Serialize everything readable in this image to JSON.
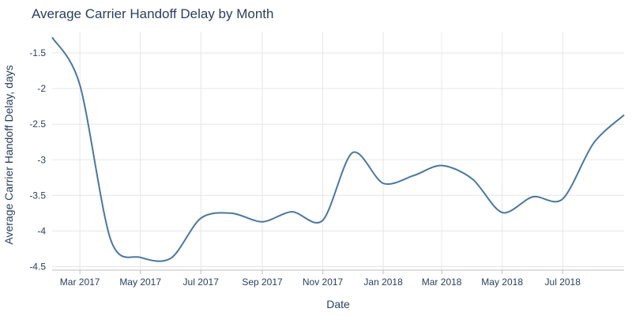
{
  "chart_data": {
    "type": "line",
    "title": "Average Carrier Handoff Delay by Month",
    "xlabel": "Date",
    "ylabel": "Average Carrier Handoff Delay, days",
    "x_tick_labels": [
      "Mar 2017",
      "May 2017",
      "Jul 2017",
      "Sep 2017",
      "Nov 2017",
      "Jan 2018",
      "Mar 2018",
      "May 2018",
      "Jul 2018"
    ],
    "x_tick_dates": [
      "2017-03-01",
      "2017-05-01",
      "2017-07-01",
      "2017-09-01",
      "2017-11-01",
      "2018-01-01",
      "2018-03-01",
      "2018-05-01",
      "2018-07-01"
    ],
    "y_tick_labels": [
      "-1.5",
      "-2",
      "-2.5",
      "-3",
      "-3.5",
      "-4",
      "-4.5"
    ],
    "y_tick_values": [
      -1.5,
      -2,
      -2.5,
      -3,
      -3.5,
      -4,
      -4.5
    ],
    "xlim": [
      "2017-02-01",
      "2018-09-01"
    ],
    "ylim": [
      -4.55,
      -1.2
    ],
    "grid": true,
    "line_color": "#4a77a0",
    "series": [
      {
        "x": [
          "2017-02-01",
          "2017-03-01",
          "2017-04-01",
          "2017-05-01",
          "2017-06-01",
          "2017-07-01",
          "2017-08-01",
          "2017-09-01",
          "2017-10-01",
          "2017-11-01",
          "2017-12-01",
          "2018-01-01",
          "2018-02-01",
          "2018-03-01",
          "2018-04-01",
          "2018-05-01",
          "2018-06-01",
          "2018-07-01",
          "2018-08-01",
          "2018-09-01"
        ],
        "y": [
          -1.28,
          -1.95,
          -4.12,
          -4.37,
          -4.38,
          -3.82,
          -3.75,
          -3.87,
          -3.73,
          -3.85,
          -2.9,
          -3.33,
          -3.22,
          -3.08,
          -3.27,
          -3.74,
          -3.52,
          -3.55,
          -2.77,
          -2.37
        ]
      }
    ]
  }
}
